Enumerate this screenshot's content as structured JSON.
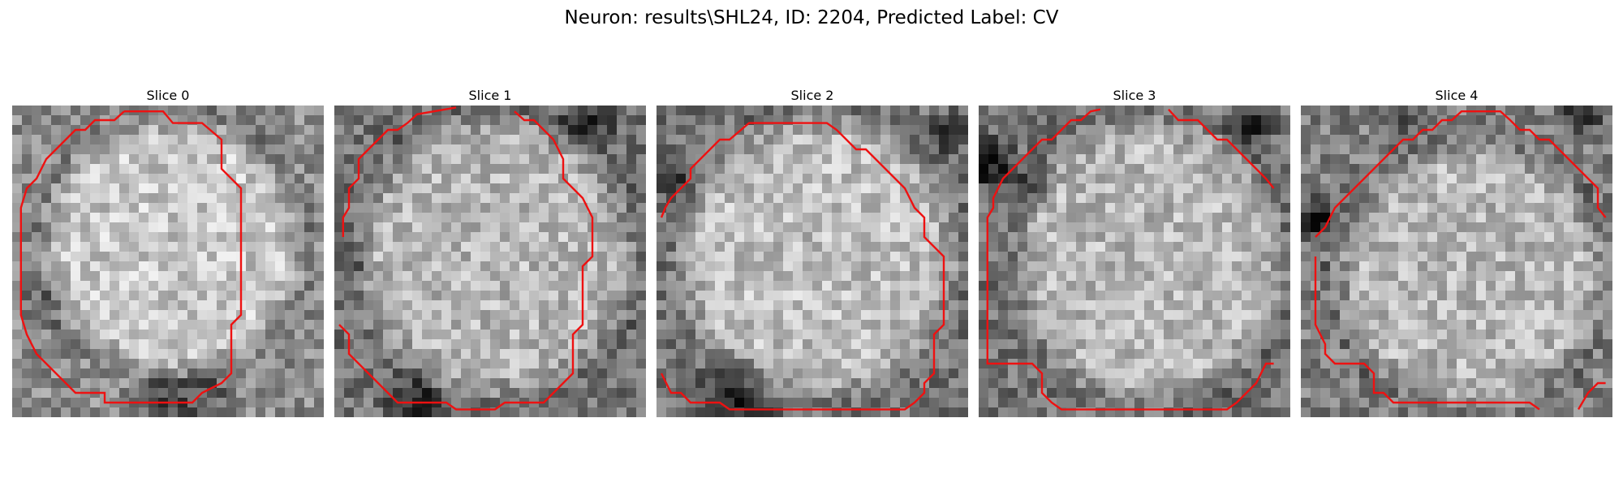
{
  "figure": {
    "title": "Neuron: results\\SHL24, ID: 2204, Predicted Label: CV"
  },
  "panels": [
    {
      "title": "Slice 0"
    },
    {
      "title": "Slice 1"
    },
    {
      "title": "Slice 2"
    },
    {
      "title": "Slice 3"
    },
    {
      "title": "Slice 4"
    }
  ],
  "colors": {
    "contour": "#ee1111",
    "image_colormap": "grayscale"
  }
}
